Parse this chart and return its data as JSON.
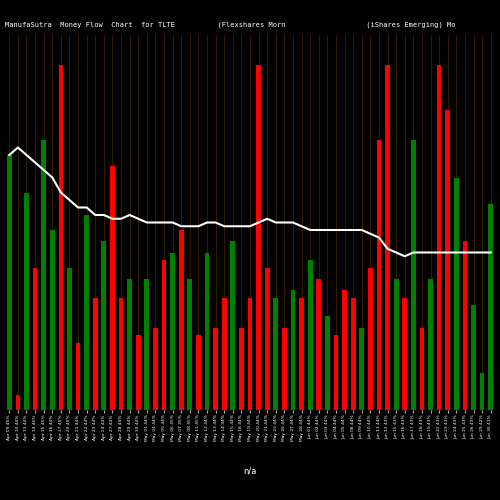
{
  "title": "ManufaSutra  Money Flow  Chart  for TLTE          (Flexshares Morn                   (iShares Emerging) Mo",
  "background_color": "#000000",
  "bar_colors": [
    "green",
    "red",
    "green",
    "red",
    "green",
    "green",
    "red",
    "green",
    "red",
    "green",
    "red",
    "green",
    "red",
    "red",
    "green",
    "red",
    "green",
    "red",
    "red",
    "green",
    "red",
    "green",
    "red",
    "green",
    "red",
    "red",
    "green",
    "red",
    "red",
    "red",
    "red",
    "green",
    "red",
    "green",
    "red",
    "green",
    "red",
    "green",
    "red",
    "red",
    "red",
    "green",
    "red",
    "red",
    "red",
    "green",
    "red",
    "green",
    "red",
    "green",
    "red",
    "red",
    "green",
    "red",
    "green",
    "green",
    "green"
  ],
  "bar_heights": [
    0.68,
    0.04,
    0.58,
    0.38,
    0.72,
    0.48,
    0.92,
    0.38,
    0.18,
    0.52,
    0.3,
    0.45,
    0.65,
    0.3,
    0.35,
    0.2,
    0.35,
    0.22,
    0.4,
    0.42,
    0.48,
    0.35,
    0.2,
    0.42,
    0.22,
    0.3,
    0.45,
    0.22,
    0.3,
    0.92,
    0.38,
    0.3,
    0.22,
    0.32,
    0.3,
    0.4,
    0.35,
    0.25,
    0.2,
    0.32,
    0.3,
    0.22,
    0.38,
    0.72,
    0.92,
    0.35,
    0.3,
    0.72,
    0.22,
    0.35,
    0.92,
    0.8,
    0.62,
    0.45,
    0.28,
    0.1,
    0.55
  ],
  "line_color": "#ffffff",
  "line_values": [
    0.68,
    0.7,
    0.68,
    0.66,
    0.64,
    0.62,
    0.58,
    0.56,
    0.54,
    0.54,
    0.52,
    0.52,
    0.51,
    0.51,
    0.52,
    0.51,
    0.5,
    0.5,
    0.5,
    0.5,
    0.49,
    0.49,
    0.49,
    0.5,
    0.5,
    0.49,
    0.49,
    0.49,
    0.49,
    0.5,
    0.51,
    0.5,
    0.5,
    0.5,
    0.49,
    0.48,
    0.48,
    0.48,
    0.48,
    0.48,
    0.48,
    0.48,
    0.47,
    0.46,
    0.43,
    0.42,
    0.41,
    0.42,
    0.42,
    0.42,
    0.42,
    0.42,
    0.42,
    0.42,
    0.42,
    0.42,
    0.42
  ],
  "xlabel": "n/a",
  "tick_labels": [
    "Apr 09 45%",
    "Apr 10 44%",
    "Apr 13 44%",
    "Apr 14 46%",
    "Apr 15 45%",
    "Apr 16 44%",
    "Apr 17 45%",
    "Apr 20 45%",
    "Apr 21 44%",
    "Apr 22 44%",
    "Apr 23 44%",
    "Apr 24 44%",
    "Apr 27 44%",
    "Apr 28 44%",
    "Apr 29 44%",
    "Apr 30 44%",
    "May 01 44%",
    "May 04 44%",
    "May 05 44%",
    "May 06 45%",
    "May 07 45%",
    "May 08 45%",
    "May 11 45%",
    "May 12 44%",
    "May 13 44%",
    "May 14 44%",
    "May 15 44%",
    "May 18 44%",
    "May 19 44%",
    "May 20 44%",
    "May 21 44%",
    "May 22 44%",
    "May 26 44%",
    "May 27 44%",
    "May 28 44%",
    "Jun 01 44%",
    "Jun 02 44%",
    "Jun 03 44%",
    "Jun 04 44%",
    "Jun 05 44%",
    "Jun 08 44%",
    "Jun 09 44%",
    "Jun 10 44%",
    "Jun 11 44%",
    "Jun 12 43%",
    "Jun 15 43%",
    "Jun 16 43%",
    "Jun 17 43%",
    "Jun 18 43%",
    "Jun 19 43%",
    "Jun 22 43%",
    "Jun 23 43%",
    "Jun 24 43%",
    "Jun 25 43%",
    "Jun 26 43%",
    "Jun 29 42%",
    "Jun 30 41%"
  ],
  "grid_color": "#3a2000",
  "ylim": [
    0,
    1.0
  ],
  "figsize": [
    5.0,
    5.0
  ],
  "dpi": 100
}
